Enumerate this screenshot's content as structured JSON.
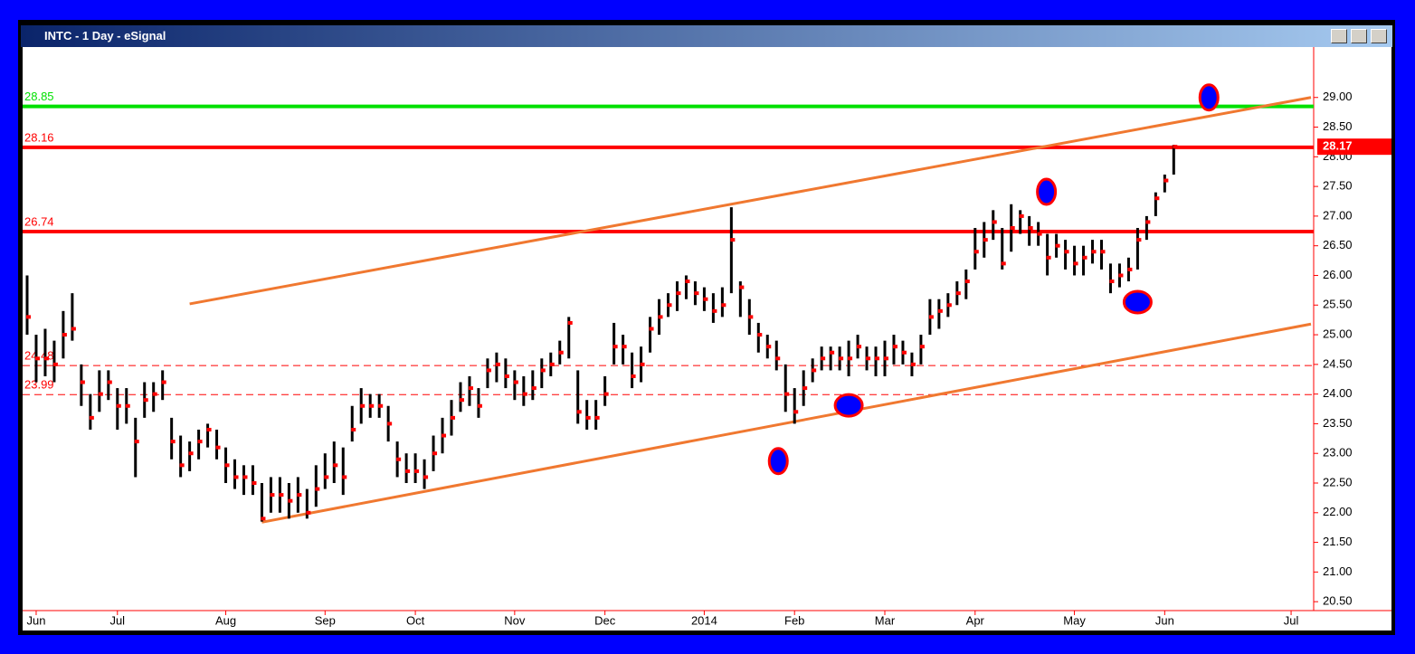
{
  "window_title": "INTC - 1 Day - eSignal",
  "chart_data": {
    "type": "ohlc",
    "close": [
      25.3,
      24.6,
      24.6,
      24.5,
      25.0,
      25.1,
      24.2,
      23.6,
      24.0,
      24.2,
      23.8,
      23.8,
      23.2,
      23.9,
      24.0,
      24.2,
      23.2,
      22.8,
      23.0,
      23.2,
      23.4,
      23.1,
      22.8,
      22.6,
      22.6,
      22.5,
      21.9,
      22.3,
      22.3,
      22.2,
      22.3,
      22.0,
      22.4,
      22.6,
      22.8,
      22.6,
      23.4,
      23.8,
      23.8,
      23.8,
      23.5,
      22.9,
      22.7,
      22.7,
      22.6,
      23.0,
      23.3,
      23.6,
      23.9,
      24.1,
      23.8,
      24.4,
      24.5,
      24.3,
      24.2,
      24.0,
      24.1,
      24.4,
      24.5,
      24.7,
      25.2,
      23.7,
      23.6,
      23.6,
      24.0,
      24.8,
      24.8,
      24.3,
      24.5,
      25.1,
      25.3,
      25.5,
      25.7,
      25.9,
      25.7,
      25.6,
      25.4,
      25.5,
      26.6,
      25.8,
      25.3,
      25.0,
      24.8,
      24.6,
      24.0,
      23.7,
      24.1,
      24.4,
      24.6,
      24.7,
      24.6,
      24.6,
      24.8,
      24.6,
      24.6,
      24.6,
      24.8,
      24.7,
      24.5,
      24.8,
      25.3,
      25.4,
      25.5,
      25.7,
      25.9,
      26.4,
      26.6,
      26.9,
      26.2,
      26.8,
      27.0,
      26.8,
      26.7,
      26.3,
      26.5,
      26.4,
      26.2,
      26.3,
      26.4,
      26.4,
      25.9,
      26.0,
      26.1,
      26.6,
      26.9,
      27.3,
      27.6,
      28.17
    ],
    "high": [
      26.0,
      25.0,
      25.1,
      24.9,
      25.4,
      25.7,
      24.5,
      24.0,
      24.4,
      24.4,
      24.1,
      24.1,
      23.6,
      24.2,
      24.2,
      24.4,
      23.6,
      23.3,
      23.2,
      23.4,
      23.5,
      23.4,
      23.1,
      22.9,
      22.8,
      22.8,
      22.5,
      22.6,
      22.6,
      22.5,
      22.6,
      22.4,
      22.8,
      23.0,
      23.2,
      23.1,
      23.8,
      24.1,
      24.0,
      24.0,
      23.8,
      23.2,
      23.0,
      23.0,
      22.9,
      23.3,
      23.6,
      23.9,
      24.2,
      24.3,
      24.1,
      24.6,
      24.7,
      24.6,
      24.4,
      24.3,
      24.4,
      24.6,
      24.7,
      24.9,
      25.3,
      24.4,
      23.9,
      23.9,
      24.3,
      25.2,
      25.0,
      24.7,
      24.8,
      25.3,
      25.6,
      25.7,
      25.9,
      26.0,
      25.9,
      25.8,
      25.7,
      25.8,
      27.15,
      25.9,
      25.6,
      25.2,
      25.0,
      24.9,
      24.5,
      24.1,
      24.4,
      24.6,
      24.8,
      24.8,
      24.8,
      24.9,
      25.0,
      24.8,
      24.8,
      24.9,
      25.0,
      24.9,
      24.7,
      25.0,
      25.6,
      25.6,
      25.7,
      25.9,
      26.1,
      26.8,
      26.9,
      27.1,
      26.8,
      27.2,
      27.1,
      27.0,
      26.9,
      26.7,
      26.7,
      26.6,
      26.5,
      26.5,
      26.6,
      26.6,
      26.2,
      26.2,
      26.3,
      26.8,
      27.0,
      27.4,
      27.7,
      28.2
    ],
    "low": [
      25.0,
      24.2,
      24.3,
      24.2,
      24.6,
      24.9,
      23.8,
      23.4,
      23.7,
      23.9,
      23.4,
      23.5,
      22.6,
      23.6,
      23.7,
      23.9,
      22.9,
      22.6,
      22.7,
      22.9,
      23.1,
      22.9,
      22.5,
      22.4,
      22.3,
      22.3,
      21.85,
      22.0,
      22.0,
      21.9,
      22.0,
      21.9,
      22.1,
      22.4,
      22.5,
      22.3,
      23.2,
      23.5,
      23.6,
      23.6,
      23.2,
      22.6,
      22.5,
      22.5,
      22.4,
      22.7,
      23.0,
      23.3,
      23.7,
      23.8,
      23.6,
      24.1,
      24.2,
      24.1,
      23.9,
      23.8,
      23.9,
      24.1,
      24.3,
      24.5,
      24.6,
      23.5,
      23.4,
      23.4,
      23.8,
      24.5,
      24.5,
      24.1,
      24.2,
      24.7,
      25.0,
      25.3,
      25.4,
      25.6,
      25.5,
      25.4,
      25.2,
      25.3,
      25.7,
      25.3,
      25.0,
      24.7,
      24.6,
      24.4,
      23.7,
      23.5,
      23.8,
      24.2,
      24.4,
      24.4,
      24.4,
      24.3,
      24.6,
      24.4,
      24.3,
      24.3,
      24.5,
      24.5,
      24.3,
      24.5,
      25.0,
      25.1,
      25.3,
      25.5,
      25.6,
      26.1,
      26.3,
      26.6,
      26.1,
      26.4,
      26.7,
      26.5,
      26.5,
      26.0,
      26.3,
      26.1,
      26.0,
      26.0,
      26.2,
      26.1,
      25.7,
      25.8,
      25.9,
      26.1,
      26.6,
      27.0,
      27.4,
      27.7
    ],
    "bar_color": "#000000",
    "close_color": "#ff0000",
    "xlim": [
      -0.5,
      142.5
    ],
    "xticks": [
      {
        "value": 1,
        "label": "Jun"
      },
      {
        "value": 10,
        "label": "Jul"
      },
      {
        "value": 22,
        "label": "Aug"
      },
      {
        "value": 33,
        "label": "Sep"
      },
      {
        "value": 43,
        "label": "Oct"
      },
      {
        "value": 54,
        "label": "Nov"
      },
      {
        "value": 64,
        "label": "Dec"
      },
      {
        "value": 75,
        "label": "2014"
      },
      {
        "value": 85,
        "label": "Feb"
      },
      {
        "value": 95,
        "label": "Mar"
      },
      {
        "value": 105,
        "label": "Apr"
      },
      {
        "value": 116,
        "label": "May"
      },
      {
        "value": 126,
        "label": "Jun"
      },
      {
        "value": 140,
        "label": "Jul"
      }
    ],
    "ylim": [
      20.35,
      29.85
    ],
    "yticks": [
      {
        "value": 20.5,
        "label": "20.50"
      },
      {
        "value": 21,
        "label": "21.00"
      },
      {
        "value": 21.5,
        "label": "21.50"
      },
      {
        "value": 22,
        "label": "22.00"
      },
      {
        "value": 22.5,
        "label": "22.50"
      },
      {
        "value": 23,
        "label": "23.00"
      },
      {
        "value": 23.5,
        "label": "23.50"
      },
      {
        "value": 24,
        "label": "24.00"
      },
      {
        "value": 24.5,
        "label": "24.50"
      },
      {
        "value": 25,
        "label": "25.00"
      },
      {
        "value": 25.5,
        "label": "25.50"
      },
      {
        "value": 26,
        "label": "26.00"
      },
      {
        "value": 26.5,
        "label": "26.50"
      },
      {
        "value": 27,
        "label": "27.00"
      },
      {
        "value": 27.5,
        "label": "27.50"
      },
      {
        "value": 28,
        "label": "28.00"
      },
      {
        "value": 28.5,
        "label": "28.50"
      },
      {
        "value": 29,
        "label": "29.00"
      }
    ],
    "levels": [
      {
        "value": 28.85,
        "color": "#00e000",
        "dashed": false
      },
      {
        "value": 28.16,
        "color": "#ff0000",
        "dashed": false
      },
      {
        "value": 26.74,
        "color": "#ff0000",
        "dashed": false
      },
      {
        "value": 24.48,
        "color": "#ff0000",
        "dashed": true
      },
      {
        "value": 23.99,
        "color": "#ff0000",
        "dashed": true
      }
    ],
    "trendlines": [
      {
        "x": [
          18,
          142.2
        ],
        "y": [
          25.52,
          29.0
        ],
        "color": "#f07830"
      },
      {
        "x": [
          26,
          142.2
        ],
        "y": [
          21.84,
          25.18
        ],
        "color": "#f07830"
      }
    ],
    "markers": {
      "x": [
        83.2,
        91,
        112.9,
        123,
        130.9
      ],
      "y": [
        22.87,
        23.81,
        27.41,
        25.55,
        29.0
      ],
      "color": "#0000ff",
      "edge": "#ff0000"
    }
  }
}
